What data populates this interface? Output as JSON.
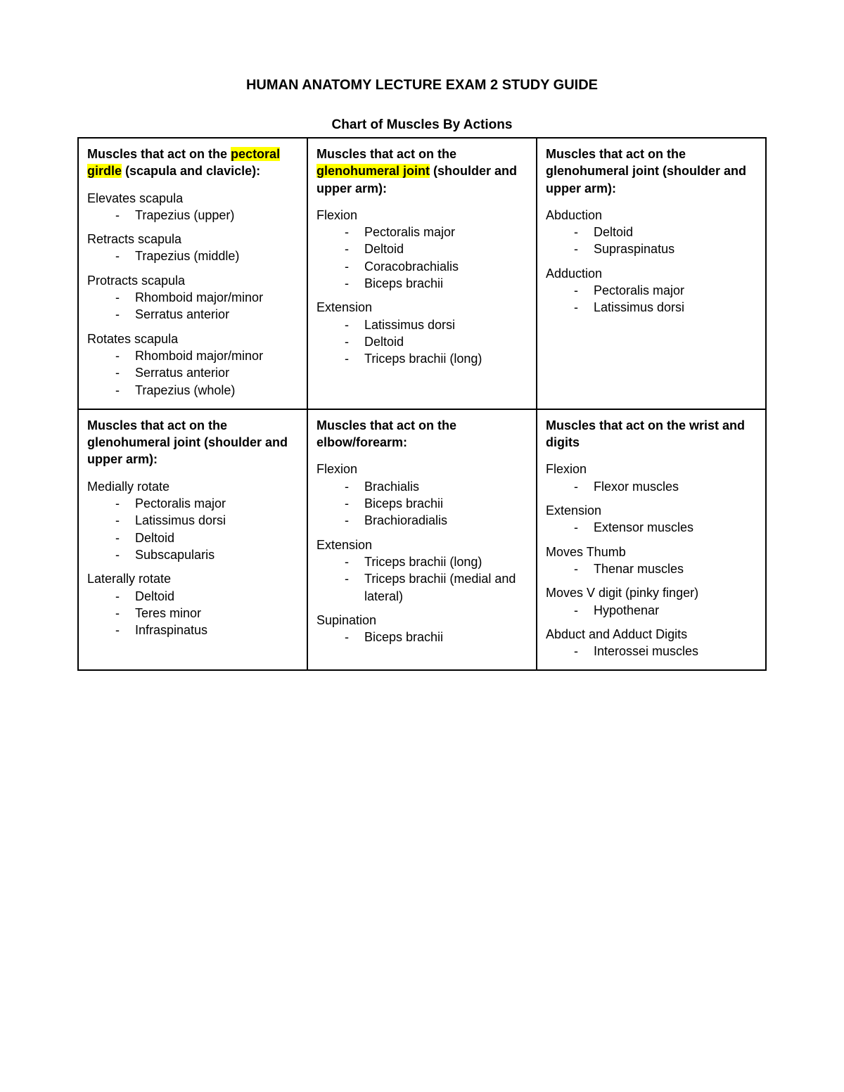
{
  "title": "HUMAN ANATOMY LECTURE EXAM 2 STUDY GUIDE",
  "subtitle": "Chart of Muscles By Actions",
  "highlight_color": "#ffff00",
  "border_color": "#000000",
  "background_color": "#ffffff",
  "text_color": "#000000",
  "cells": [
    {
      "heading": {
        "pre": "Muscles that act on the ",
        "highlight": "pectoral girdle",
        "post": " (scapula and clavicle):"
      },
      "groups": [
        {
          "label": "Elevates scapula",
          "items": [
            "Trapezius (upper)"
          ]
        },
        {
          "label": "Retracts scapula",
          "items": [
            "Trapezius (middle)"
          ]
        },
        {
          "label": "Protracts scapula",
          "items": [
            "Rhomboid major/minor",
            "Serratus anterior"
          ]
        },
        {
          "label": "Rotates scapula",
          "items": [
            "Rhomboid major/minor",
            "Serratus anterior",
            "Trapezius (whole)"
          ]
        }
      ]
    },
    {
      "heading": {
        "pre": "Muscles that act on the ",
        "highlight": "glenohumeral joint",
        "post": " (shoulder and upper arm):"
      },
      "groups": [
        {
          "label": "Flexion",
          "items": [
            "Pectoralis major",
            "Deltoid",
            "Coracobrachialis",
            "Biceps brachii"
          ]
        },
        {
          "label": "Extension",
          "items": [
            "Latissimus dorsi",
            "Deltoid",
            "Triceps brachii (long)"
          ]
        }
      ]
    },
    {
      "heading": {
        "pre": "Muscles that act on the glenohumeral joint (shoulder and upper arm):",
        "highlight": "",
        "post": ""
      },
      "groups": [
        {
          "label": "Abduction",
          "items": [
            "Deltoid",
            "Supraspinatus"
          ]
        },
        {
          "label": "Adduction",
          "items": [
            "Pectoralis major",
            "Latissimus dorsi"
          ]
        }
      ]
    },
    {
      "heading": {
        "pre": "Muscles that act on the glenohumeral joint (shoulder and upper arm):",
        "highlight": "",
        "post": ""
      },
      "groups": [
        {
          "label": "Medially rotate",
          "items": [
            "Pectoralis major",
            "Latissimus dorsi",
            "Deltoid",
            "Subscapularis"
          ]
        },
        {
          "label": "Laterally rotate",
          "items": [
            "Deltoid",
            "Teres minor",
            "Infraspinatus"
          ]
        }
      ]
    },
    {
      "heading": {
        "pre": "Muscles that act on the elbow/forearm:",
        "highlight": "",
        "post": ""
      },
      "groups": [
        {
          "label": "Flexion",
          "items": [
            "Brachialis",
            "Biceps brachii",
            "Brachioradialis"
          ]
        },
        {
          "label": "Extension",
          "items": [
            "Triceps brachii (long)",
            "Triceps brachii (medial and lateral)"
          ]
        },
        {
          "label": "Supination",
          "items": [
            "Biceps brachii"
          ]
        }
      ]
    },
    {
      "heading": {
        "pre": "Muscles that act on the wrist and digits",
        "highlight": "",
        "post": ""
      },
      "groups": [
        {
          "label": "Flexion",
          "items": [
            "Flexor muscles"
          ]
        },
        {
          "label": "Extension",
          "items": [
            "Extensor muscles"
          ]
        },
        {
          "label": "Moves Thumb",
          "items": [
            "Thenar muscles"
          ]
        },
        {
          "label": "Moves V digit (pinky finger)",
          "items": [
            "Hypothenar"
          ]
        },
        {
          "label": "Abduct and Adduct Digits",
          "items": [
            "Interossei muscles"
          ]
        }
      ]
    }
  ]
}
